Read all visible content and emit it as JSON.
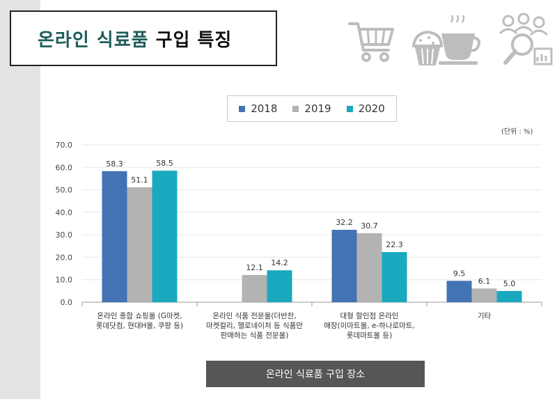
{
  "title": {
    "accent": "온라인 식료품",
    "rest": "구입 특징"
  },
  "icons": [
    "shopping-cart-icon",
    "cupcake-coffee-icon",
    "people-analytics-icon"
  ],
  "unit_label": "(단위 : %)",
  "footer_label": "온라인 식료품 구입 장소",
  "colors": {
    "2018": "#4473b3",
    "2019": "#b3b3b3",
    "2020": "#1aa9bf"
  },
  "chart_data": {
    "type": "bar",
    "categories": [
      "온라인 종합 쇼핑몰 (G마켓,\n롯데닷컴, 현대H몰, 쿠팡 등)",
      "온라인 식품 전문몰(더반찬,\n마켓컬리, 헬로네이처 등 식품만\n판매하는 식품 전문몰)",
      "대형 할인점 온라인\n매장(이마트몰, e-하나로마트,\n롯데마트몰 등)",
      "기타"
    ],
    "series": [
      {
        "name": "2018",
        "values": [
          58.3,
          null,
          32.2,
          9.5
        ],
        "labels": [
          "58.3",
          "",
          "32.2",
          "9.5"
        ]
      },
      {
        "name": "2019",
        "values": [
          51.1,
          12.1,
          30.7,
          6.1
        ],
        "labels": [
          "51.1",
          "12.1",
          "30.7",
          "6.1"
        ]
      },
      {
        "name": "2020",
        "values": [
          58.5,
          14.2,
          22.3,
          5.0
        ],
        "labels": [
          "58.5",
          "14.2",
          "22.3",
          "5.0"
        ]
      }
    ],
    "y_ticks": [
      "0.0",
      "10.0",
      "20.0",
      "30.0",
      "40.0",
      "50.0",
      "60.0",
      "70.0"
    ],
    "ylim": [
      0,
      70
    ],
    "grid": true,
    "legend_position": "top-center"
  }
}
